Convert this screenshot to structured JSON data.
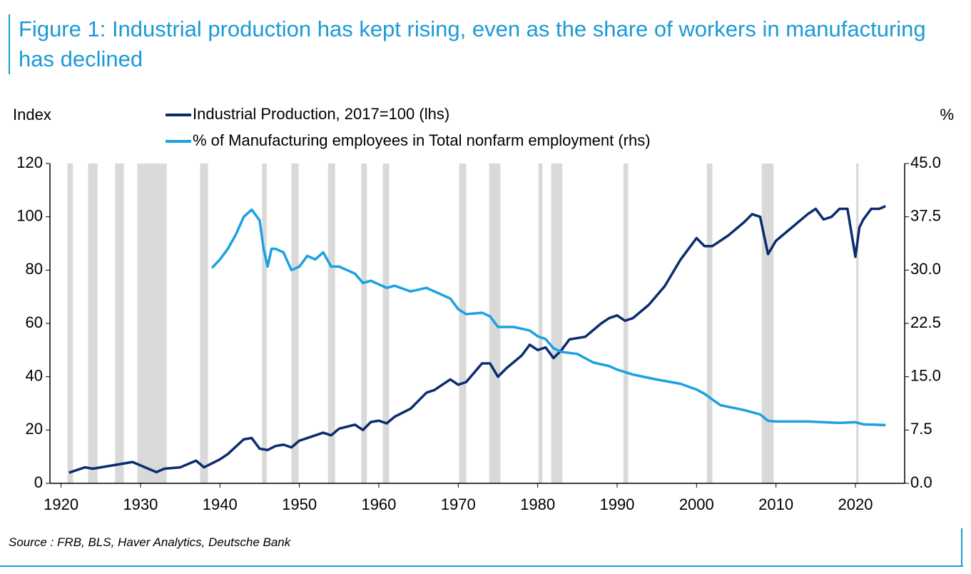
{
  "chart_data": {
    "type": "line",
    "title": "Figure 1: Industrial production has kept rising, even as the share of workers in manufacturing has declined",
    "y_label": "Index",
    "y2_label": "%",
    "source": "Source : FRB, BLS, Haver Analytics, Deutsche Bank",
    "xlim": [
      1918.6,
      2026.2
    ],
    "xticks": [
      1920,
      1930,
      1940,
      1950,
      1960,
      1970,
      1980,
      1990,
      2000,
      2010,
      2020
    ],
    "ylim": [
      0,
      120
    ],
    "yticks": [
      0,
      20,
      40,
      60,
      80,
      100,
      120
    ],
    "y2lim": [
      0,
      45
    ],
    "y2ticks": [
      {
        "value": 0,
        "label": "0.0"
      },
      7.5,
      {
        "value": 15,
        "label": "15.0"
      },
      22.5,
      {
        "value": 30,
        "label": "30.0"
      },
      37.5,
      {
        "value": 45,
        "label": "45.0"
      }
    ],
    "grid": false,
    "shading_color": "#d9d9d9",
    "shading": [
      [
        1920.8,
        1921.5
      ],
      [
        1923.4,
        1924.6
      ],
      [
        1926.8,
        1927.9
      ],
      [
        1929.6,
        1933.3
      ],
      [
        1937.5,
        1938.5
      ],
      [
        1945.3,
        1945.9
      ],
      [
        1949.0,
        1949.9
      ],
      [
        1953.6,
        1954.5
      ],
      [
        1957.8,
        1958.5
      ],
      [
        1960.5,
        1961.3
      ],
      [
        1970.1,
        1971.0
      ],
      [
        1973.9,
        1975.3
      ],
      [
        1980.1,
        1980.6
      ],
      [
        1981.7,
        1983.1
      ],
      [
        1990.8,
        1991.4
      ],
      [
        2001.3,
        2002.0
      ],
      [
        2008.2,
        2009.7
      ],
      [
        2020.1,
        2020.4
      ]
    ],
    "series": [
      {
        "name": "Industrial Production, 2017=100 (lhs)",
        "color": "#0c2c6e",
        "x": [
          1921,
          1923,
          1924,
          1926,
          1929,
          1932,
          1933,
          1935,
          1937,
          1938,
          1940,
          1941,
          1943,
          1944,
          1945,
          1946,
          1947,
          1948,
          1949,
          1950,
          1951,
          1953,
          1954,
          1955,
          1957,
          1958,
          1959,
          1960,
          1961,
          1962,
          1964,
          1966,
          1967,
          1969,
          1970,
          1971,
          1973,
          1974,
          1975,
          1976,
          1978,
          1979,
          1980,
          1981,
          1982,
          1983,
          1984,
          1986,
          1988,
          1989,
          1990,
          1991,
          1992,
          1994,
          1996,
          1998,
          2000,
          2001,
          2002,
          2004,
          2006,
          2007,
          2008,
          2009,
          2010,
          2012,
          2014,
          2015,
          2016,
          2017,
          2018,
          2019,
          2020,
          2020.5,
          2021,
          2022,
          2023,
          2023.8
        ],
        "values": [
          4,
          6,
          5.5,
          6.5,
          8,
          4.2,
          5.5,
          6,
          8.5,
          6,
          9,
          11,
          16.5,
          17,
          13,
          12.5,
          14,
          14.5,
          13.5,
          16,
          17,
          19,
          18,
          20.5,
          22,
          20,
          23,
          23.5,
          22.5,
          25,
          28,
          34,
          35,
          39,
          37,
          38,
          45,
          45,
          40,
          43,
          48,
          52,
          50,
          51,
          47,
          50,
          54,
          55,
          60,
          62,
          63,
          61,
          62,
          67,
          74,
          84,
          92,
          89,
          89,
          93,
          98,
          101,
          100,
          86,
          91,
          96,
          101,
          103,
          99,
          100,
          103,
          103,
          85,
          96,
          99,
          103,
          103,
          104
        ]
      },
      {
        "name": "% of Manufacturing employees in Total nonfarm employment (rhs)",
        "color": "#1ba1e2",
        "axis": "y2",
        "x": [
          1939,
          1940,
          1941,
          1942,
          1943,
          1944,
          1945,
          1945.5,
          1946,
          1946.5,
          1947,
          1948,
          1949,
          1950,
          1951,
          1952,
          1953,
          1954,
          1955,
          1956,
          1957,
          1958,
          1959,
          1960,
          1961,
          1962,
          1964,
          1966,
          1968,
          1969,
          1970,
          1971,
          1973,
          1974,
          1975,
          1977,
          1979,
          1980,
          1981,
          1982,
          1983,
          1985,
          1987,
          1989,
          1990,
          1992,
          1995,
          1998,
          2000,
          2001,
          2002,
          2003,
          2006,
          2008,
          2009,
          2010,
          2014,
          2016,
          2018,
          2020,
          2021,
          2023.8
        ],
        "values": [
          30.3,
          31.5,
          33,
          35,
          37.5,
          38.5,
          37,
          33,
          30.5,
          33,
          33,
          32.5,
          30,
          30.5,
          32,
          31.5,
          32.5,
          30.5,
          30.5,
          30,
          29.5,
          28.2,
          28.5,
          28,
          27.5,
          27.8,
          27,
          27.5,
          26.5,
          26,
          24.5,
          23.8,
          24,
          23.5,
          22,
          22,
          21.5,
          20.7,
          20.3,
          19,
          18.5,
          18.2,
          17,
          16.5,
          16,
          15.3,
          14.6,
          14,
          13.2,
          12.6,
          11.8,
          11,
          10.3,
          9.7,
          8.8,
          8.7,
          8.7,
          8.6,
          8.5,
          8.6,
          8.3,
          8.2
        ]
      }
    ]
  }
}
